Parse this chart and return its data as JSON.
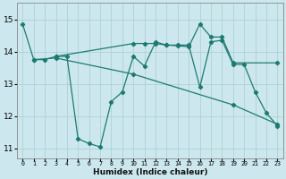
{
  "xlabel": "Humidex (Indice chaleur)",
  "ylabel": "",
  "xlim": [
    -0.5,
    23.5
  ],
  "ylim": [
    10.7,
    15.5
  ],
  "yticks": [
    11,
    12,
    13,
    14,
    15
  ],
  "xtick_labels": [
    "0",
    "1",
    "2",
    "3",
    "4",
    "5",
    "6",
    "7",
    "8",
    "9",
    "10",
    "11",
    "12",
    "13",
    "14",
    "15",
    "16",
    "17",
    "18",
    "19",
    "20",
    "21",
    "22",
    "23"
  ],
  "background_color": "#cce8ee",
  "grid_color": "#aacccc",
  "line_color": "#1e7a70",
  "series": [
    {
      "x": [
        0,
        1,
        2,
        3,
        4,
        5,
        6,
        7,
        8,
        9,
        10,
        11,
        12,
        13,
        14,
        15,
        16,
        17,
        18,
        19,
        20,
        21,
        22,
        23
      ],
      "y": [
        14.85,
        13.75,
        13.75,
        13.85,
        13.85,
        11.3,
        11.15,
        11.05,
        12.45,
        12.75,
        13.85,
        13.55,
        14.3,
        14.2,
        14.2,
        14.2,
        12.9,
        14.3,
        14.35,
        13.6,
        13.6,
        12.75,
        12.1,
        11.7
      ]
    },
    {
      "x": [
        1,
        3,
        10,
        19,
        23
      ],
      "y": [
        13.75,
        13.8,
        13.3,
        12.35,
        11.75
      ]
    },
    {
      "x": [
        3,
        10,
        11,
        12,
        13,
        14,
        15,
        16,
        17,
        18,
        19,
        23
      ],
      "y": [
        13.85,
        14.25,
        14.25,
        14.25,
        14.2,
        14.18,
        14.15,
        14.85,
        14.45,
        14.45,
        13.65,
        13.65
      ]
    }
  ]
}
